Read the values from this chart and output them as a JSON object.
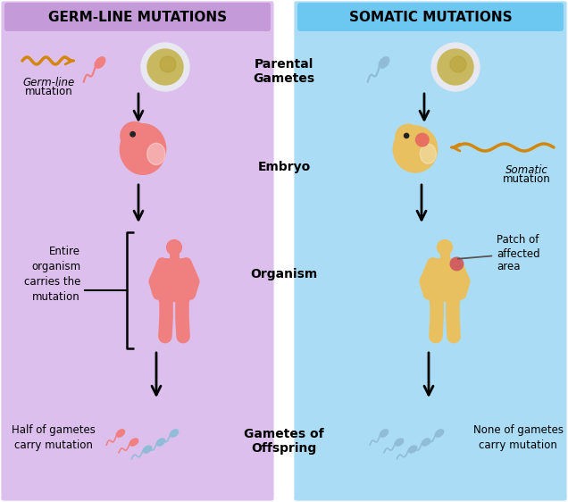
{
  "left_bg_color": "#ddbfee",
  "right_bg_color": "#aaddf5",
  "left_header_color": "#c49ad8",
  "right_header_color": "#6cc8f0",
  "left_title": "GERM-LINE MUTATIONS",
  "right_title": "SOMATIC MUTATIONS",
  "center_labels": [
    "Parental\nGametes",
    "Embryo",
    "Organism",
    "Gametes of\nOffspring"
  ],
  "mutation_wave_color": "#d4860a",
  "sperm_mutant_color": "#f08080",
  "sperm_normal_color": "#90bcd8",
  "embryo_left_color": "#f08080",
  "embryo_right_color": "#e8c060",
  "person_left_color": "#f08080",
  "person_right_color": "#e8c060",
  "egg_color": "#c8b860",
  "egg_outer_color": "#e8e8f0",
  "patch_color": "#d06060",
  "title_fontsize": 11,
  "label_fontsize": 10,
  "annotation_fontsize": 8.5
}
